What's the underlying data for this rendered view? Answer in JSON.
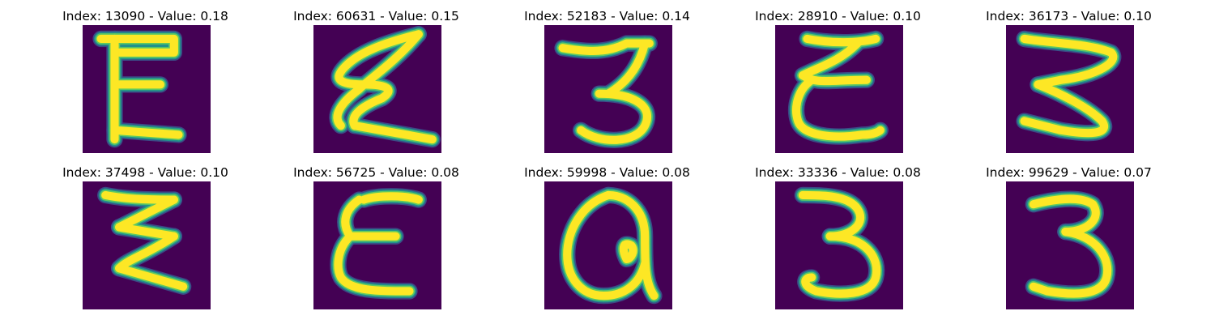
{
  "colors": {
    "background": "#440154",
    "stroke": "#fde725",
    "edge": "#21918c",
    "edge_dark": "#3b528b",
    "edge_light": "#5ec962"
  },
  "panels": [
    {
      "title": "Index: 13090 - Value: 0.18",
      "glyph": "E-block"
    },
    {
      "title": "Index: 60631 - Value: 0.15",
      "glyph": "E-slanted"
    },
    {
      "title": "Index: 52183 - Value: 0.14",
      "glyph": "3-tall"
    },
    {
      "title": "Index: 28910 - Value: 0.10",
      "glyph": "E-thin"
    },
    {
      "title": "Index: 36173 - Value: 0.10",
      "glyph": "3-zigzag"
    },
    {
      "title": "Index: 37498 - Value: 0.10",
      "glyph": "3-zigzag-thick"
    },
    {
      "title": "Index: 56725 - Value: 0.08",
      "glyph": "E-rounded"
    },
    {
      "title": "Index: 59998 - Value: 0.08",
      "glyph": "a-loop"
    },
    {
      "title": "Index: 33336 - Value: 0.08",
      "glyph": "3-round"
    },
    {
      "title": "Index: 99629 - Value: 0.07",
      "glyph": "3-round-2"
    }
  ]
}
